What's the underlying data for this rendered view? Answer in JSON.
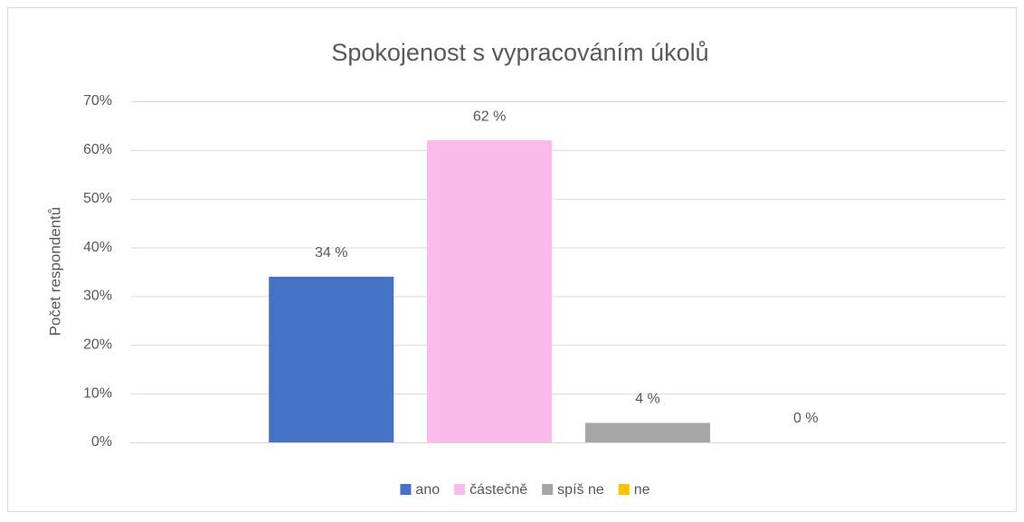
{
  "chart_data": {
    "type": "bar",
    "title": "Spokojenost s vypracováním úkolů",
    "y_label": "Počet respondentů",
    "categories": [
      null
    ],
    "series": [
      {
        "name": "ano",
        "color": "#4472c4",
        "values": [
          34
        ],
        "value_labels": [
          "34 %"
        ]
      },
      {
        "name": "částečně",
        "color": "#fbb9ec",
        "values": [
          62
        ],
        "value_labels": [
          "62 %"
        ]
      },
      {
        "name": "spíš ne",
        "color": "#a5a5a5",
        "values": [
          4
        ],
        "value_labels": [
          "4 %"
        ]
      },
      {
        "name": "ne",
        "color": "#ffc000",
        "values": [
          0
        ],
        "value_labels": [
          "0 %"
        ]
      }
    ],
    "ylim": [
      0,
      70
    ],
    "yticks": [
      {
        "value": 0,
        "label": "0%"
      },
      {
        "value": 10,
        "label": "10%"
      },
      {
        "value": 20,
        "label": "20%"
      },
      {
        "value": 30,
        "label": "30%"
      },
      {
        "value": 40,
        "label": "40%"
      },
      {
        "value": 50,
        "label": "50%"
      },
      {
        "value": 60,
        "label": "60%"
      },
      {
        "value": 70,
        "label": "70%"
      }
    ],
    "grid": true,
    "legend": "bottom"
  }
}
